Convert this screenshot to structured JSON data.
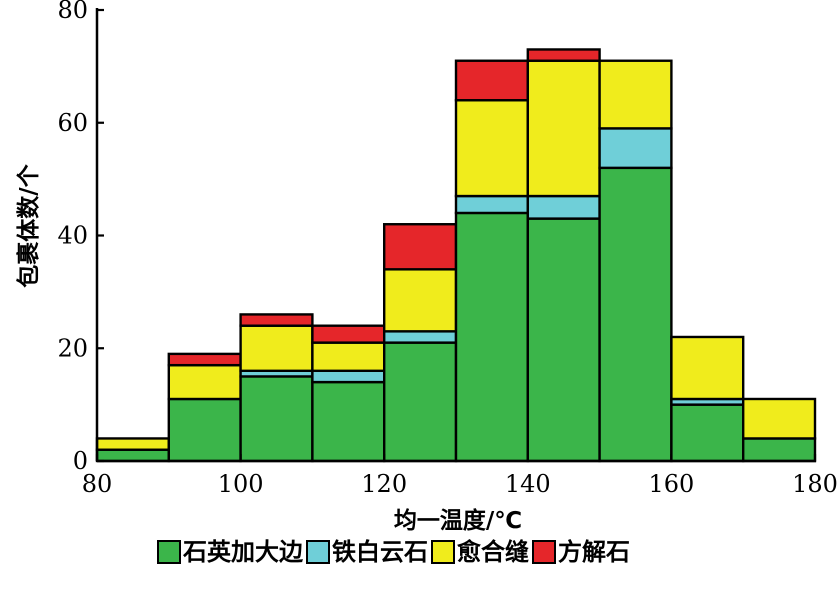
{
  "chart_data": {
    "type": "bar",
    "stacked": true,
    "bin_edges": [
      80,
      90,
      100,
      110,
      120,
      130,
      140,
      150,
      160,
      170,
      180
    ],
    "xlabel": "均一温度/℃",
    "ylabel": "包裹体数/个",
    "xlim": [
      80,
      180
    ],
    "ylim": [
      0,
      80
    ],
    "x_ticks": [
      80,
      100,
      120,
      140,
      160,
      180
    ],
    "y_ticks": [
      0,
      20,
      40,
      60,
      80
    ],
    "grid": false,
    "legend_placement": "bottom",
    "series": [
      {
        "name": "石英加大边",
        "color": "#3bb54a",
        "values": [
          2,
          11,
          15,
          14,
          21,
          44,
          43,
          52,
          10,
          4
        ]
      },
      {
        "name": "铁白云石",
        "color": "#6fcfd8",
        "values": [
          0,
          0,
          1,
          2,
          2,
          3,
          4,
          7,
          1,
          0
        ]
      },
      {
        "name": "愈合缝",
        "color": "#f0ec1c",
        "values": [
          2,
          6,
          8,
          5,
          11,
          17,
          24,
          12,
          11,
          7
        ]
      },
      {
        "name": "方解石",
        "color": "#e5262a",
        "values": [
          0,
          2,
          2,
          3,
          8,
          7,
          2,
          0,
          0,
          0
        ]
      }
    ]
  }
}
